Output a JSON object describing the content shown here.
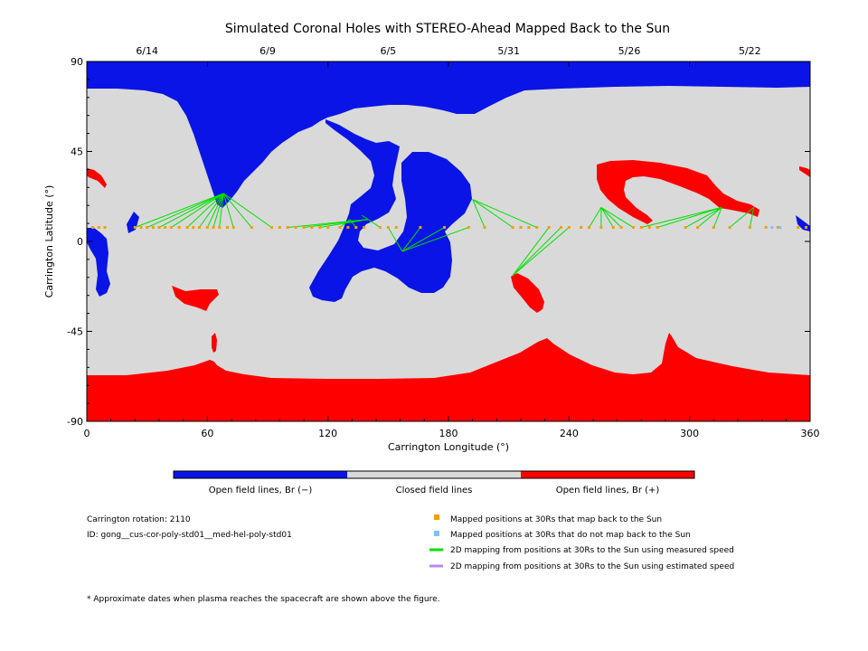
{
  "chart_data": {
    "type": "scatter",
    "title": "Simulated Coronal Holes with STEREO-Ahead Mapped Back to the Sun",
    "xlabel": "Carrington Longitude (°)",
    "ylabel": "Carrington Latitude (°)",
    "xlim": [
      0,
      360
    ],
    "ylim": [
      -90,
      90
    ],
    "x_ticks": [
      0,
      60,
      120,
      180,
      240,
      300,
      360
    ],
    "y_ticks": [
      -90,
      -45,
      0,
      45,
      90
    ],
    "top_dates": [
      {
        "label": "6/14",
        "lon": 30
      },
      {
        "label": "6/9",
        "lon": 90
      },
      {
        "label": "6/5",
        "lon": 150
      },
      {
        "label": "5/31",
        "lon": 210
      },
      {
        "label": "5/26",
        "lon": 270
      },
      {
        "label": "5/22",
        "lon": 330
      }
    ],
    "colorbar": [
      {
        "label": "Open field lines, Br (−)",
        "color": "#0a14e6"
      },
      {
        "label": "Closed field lines",
        "color": "#d9d9d9"
      },
      {
        "label": "Open field lines, Br (+)",
        "color": "#ff0000"
      }
    ],
    "mapped_positions_back": [
      3,
      6,
      9,
      24,
      27,
      30,
      33,
      36,
      39,
      42,
      46,
      50,
      53,
      56,
      60,
      63,
      66,
      70,
      73,
      82,
      92,
      96,
      100,
      104,
      108,
      112,
      116,
      120,
      126,
      130,
      134,
      138,
      146,
      150,
      154,
      166,
      178,
      190,
      198,
      212,
      216,
      220,
      224,
      230,
      236,
      240,
      246,
      250,
      256,
      262,
      266,
      272,
      276,
      280,
      284,
      298,
      304,
      312,
      320,
      330,
      338,
      344,
      354,
      358
    ],
    "mapped_positions_no_back": [
      341,
      345
    ],
    "mapped_latitude": 7,
    "field_lines": [
      {
        "from_lon": 24,
        "to": [
          68,
          24
        ]
      },
      {
        "from_lon": 30,
        "to": [
          68,
          24
        ]
      },
      {
        "from_lon": 36,
        "to": [
          68,
          24
        ]
      },
      {
        "from_lon": 42,
        "to": [
          68,
          24
        ]
      },
      {
        "from_lon": 50,
        "to": [
          68,
          24
        ]
      },
      {
        "from_lon": 56,
        "to": [
          68,
          24
        ]
      },
      {
        "from_lon": 60,
        "to": [
          68,
          24
        ]
      },
      {
        "from_lon": 63,
        "to": [
          68,
          24
        ]
      },
      {
        "from_lon": 66,
        "to": [
          68,
          24
        ]
      },
      {
        "from_lon": 73,
        "to": [
          68,
          24
        ]
      },
      {
        "from_lon": 82,
        "to": [
          68,
          24
        ]
      },
      {
        "from_lon": 92,
        "to": [
          68,
          24
        ]
      },
      {
        "from_lon": 100,
        "to": [
          140,
          11
        ]
      },
      {
        "from_lon": 108,
        "to": [
          140,
          11
        ]
      },
      {
        "from_lon": 116,
        "to": [
          140,
          11
        ]
      },
      {
        "from_lon": 126,
        "to": [
          131,
          11
        ]
      },
      {
        "from_lon": 134,
        "to": [
          131,
          11
        ]
      },
      {
        "from_lon": 146,
        "to": [
          137,
          13
        ]
      },
      {
        "from_lon": 150,
        "to": [
          157,
          -5
        ]
      },
      {
        "from_lon": 166,
        "to": [
          157,
          -5
        ]
      },
      {
        "from_lon": 178,
        "to": [
          157,
          -5
        ]
      },
      {
        "from_lon": 190,
        "to": [
          157,
          -5
        ]
      },
      {
        "from_lon": 198,
        "to": [
          192,
          21
        ]
      },
      {
        "from_lon": 212,
        "to": [
          192,
          21
        ]
      },
      {
        "from_lon": 224,
        "to": [
          192,
          21
        ]
      },
      {
        "from_lon": 230,
        "to": [
          212,
          -17
        ]
      },
      {
        "from_lon": 236,
        "to": [
          212,
          -17
        ]
      },
      {
        "from_lon": 240,
        "to": [
          212,
          -17
        ]
      },
      {
        "from_lon": 250,
        "to": [
          256,
          17
        ]
      },
      {
        "from_lon": 256,
        "to": [
          256,
          17
        ]
      },
      {
        "from_lon": 262,
        "to": [
          256,
          17
        ]
      },
      {
        "from_lon": 266,
        "to": [
          256,
          17
        ]
      },
      {
        "from_lon": 272,
        "to": [
          256,
          17
        ]
      },
      {
        "from_lon": 276,
        "to": [
          316,
          17
        ]
      },
      {
        "from_lon": 284,
        "to": [
          316,
          17
        ]
      },
      {
        "from_lon": 298,
        "to": [
          316,
          17
        ]
      },
      {
        "from_lon": 304,
        "to": [
          316,
          17
        ]
      },
      {
        "from_lon": 312,
        "to": [
          316,
          17
        ]
      },
      {
        "from_lon": 320,
        "to": [
          332,
          17
        ]
      },
      {
        "from_lon": 330,
        "to": [
          332,
          17
        ]
      }
    ]
  },
  "info": {
    "rotation": "Carrington rotation: 2110",
    "id": "ID: gong__cus-cor-poly-std01__med-hel-poly-std01"
  },
  "legend": [
    {
      "label": "Mapped positions at 30Rs that map back to the Sun",
      "color": "#f0a000",
      "marker": "square"
    },
    {
      "label": "Mapped positions at 30Rs that do not map back to the Sun",
      "color": "#7fbfff",
      "marker": "square"
    },
    {
      "label": "2D mapping from positions at 30Rs to the Sun using measured speed",
      "color": "#00e000",
      "marker": "line"
    },
    {
      "label": "2D mapping from positions at 30Rs to the Sun using estimated speed",
      "color": "#b98be8",
      "marker": "line"
    }
  ],
  "footnote": "* Approximate dates when plasma reaches the spacecraft are shown above the figure."
}
